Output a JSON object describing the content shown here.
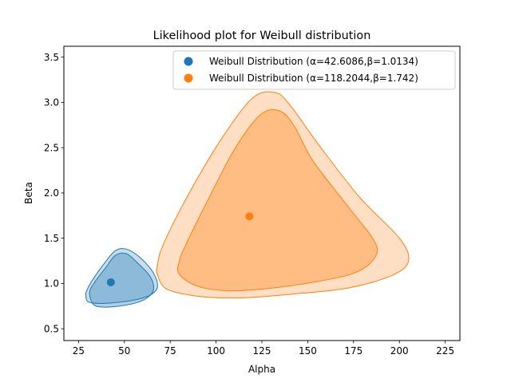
{
  "chart_data": {
    "type": "scatter",
    "title": "Likelihood plot for Weibull distribution",
    "xlabel": "Alpha",
    "ylabel": "Beta",
    "xlim": [
      17,
      233
    ],
    "ylim": [
      0.37,
      3.62
    ],
    "xticks": [
      25,
      50,
      75,
      100,
      125,
      150,
      175,
      200,
      225
    ],
    "yticks": [
      0.5,
      1.0,
      1.5,
      2.0,
      2.5,
      3.0,
      3.5
    ],
    "xtick_labels": [
      "25",
      "50",
      "75",
      "100",
      "125",
      "150",
      "175",
      "200",
      "225"
    ],
    "ytick_labels": [
      "0.5",
      "1.0",
      "1.5",
      "2.0",
      "2.5",
      "3.0",
      "3.5"
    ],
    "grid": false,
    "legend_position": "top-right",
    "series": [
      {
        "name": "Weibull Distribution (α=42.6086,β=1.0134)",
        "color": "#1f77b4",
        "point": {
          "x": 42.6086,
          "y": 1.0134
        },
        "contours": [
          [
            [
              29,
              0.87
            ],
            [
              30,
              0.8
            ],
            [
              36,
              0.78
            ],
            [
              46,
              0.79
            ],
            [
              56,
              0.82
            ],
            [
              64,
              0.87
            ],
            [
              68,
              0.96
            ],
            [
              66,
              1.11
            ],
            [
              59,
              1.28
            ],
            [
              51,
              1.38
            ],
            [
              45,
              1.36
            ],
            [
              39,
              1.22
            ],
            [
              32,
              1.02
            ],
            [
              29,
              0.9
            ]
          ],
          [
            [
              31,
              0.9
            ],
            [
              33,
              0.77
            ],
            [
              38,
              0.74
            ],
            [
              47,
              0.75
            ],
            [
              57,
              0.79
            ],
            [
              63,
              0.85
            ],
            [
              66,
              0.94
            ],
            [
              64,
              1.08
            ],
            [
              57,
              1.23
            ],
            [
              51,
              1.33
            ],
            [
              45,
              1.31
            ],
            [
              40,
              1.18
            ],
            [
              34,
              1.02
            ]
          ]
        ]
      },
      {
        "name": "Weibull Distribution (α=118.2044,β=1.742)",
        "color": "#ff7f0e",
        "point": {
          "x": 118.2044,
          "y": 1.742
        },
        "contours": [
          [
            [
              68,
              1.1
            ],
            [
              73,
              0.94
            ],
            [
              90,
              0.86
            ],
            [
              112,
              0.84
            ],
            [
              140,
              0.88
            ],
            [
              172,
              0.95
            ],
            [
              196,
              1.09
            ],
            [
              205,
              1.25
            ],
            [
              200,
              1.5
            ],
            [
              178,
              1.96
            ],
            [
              155,
              2.56
            ],
            [
              140,
              2.98
            ],
            [
              132,
              3.11
            ],
            [
              120,
              3.05
            ],
            [
              103,
              2.6
            ],
            [
              84,
              1.95
            ],
            [
              71,
              1.42
            ],
            [
              68,
              1.2
            ]
          ],
          [
            [
              80,
              1.1
            ],
            [
              90,
              0.97
            ],
            [
              106,
              0.92
            ],
            [
              126,
              0.94
            ],
            [
              152,
              1.01
            ],
            [
              176,
              1.12
            ],
            [
              187,
              1.3
            ],
            [
              186,
              1.48
            ],
            [
              172,
              1.85
            ],
            [
              153,
              2.35
            ],
            [
              142,
              2.76
            ],
            [
              134,
              2.91
            ],
            [
              124,
              2.86
            ],
            [
              110,
              2.48
            ],
            [
              95,
              1.9
            ],
            [
              84,
              1.45
            ],
            [
              80,
              1.25
            ]
          ]
        ]
      }
    ]
  }
}
